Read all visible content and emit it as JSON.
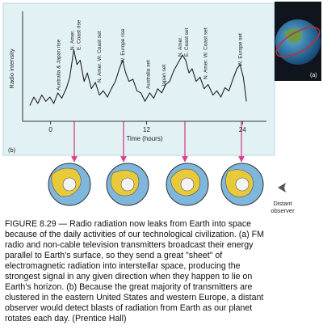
{
  "chart_data": {
    "type": "line",
    "panel_label": "(b)",
    "xlabel": "Time (hours)",
    "ylabel": "Radio intensity",
    "color": "#222222",
    "xlim": [
      -3.5,
      27
    ],
    "xticks": [
      0,
      12,
      24
    ],
    "ylim": [
      0,
      10
    ],
    "x": [
      -2.6,
      -2.1,
      -1.6,
      -1.1,
      -0.6,
      -0.1,
      0.4,
      0.9,
      1.4,
      2.0,
      2.4,
      2.9,
      3.3,
      3.7,
      4.2,
      4.6,
      5.1,
      5.6,
      6.1,
      6.6,
      7.1,
      7.6,
      8.1,
      8.6,
      9.0,
      9.4,
      9.8,
      10.3,
      10.8,
      11.3,
      11.8,
      12.4,
      12.9,
      13.4,
      13.9,
      14.4,
      14.9,
      15.4,
      15.9,
      16.5,
      16.9,
      17.3,
      17.7,
      18.2,
      18.7,
      19.2,
      19.7,
      20.3,
      20.8,
      21.3,
      21.8,
      22.3,
      22.8,
      23.3,
      23.7,
      24.1,
      24.5
    ],
    "values": [
      1.5,
      2.3,
      1.7,
      2.5,
      1.9,
      2.3,
      1.7,
      2.7,
      2.2,
      3.2,
      4.2,
      6.8,
      5.4,
      5.8,
      3.8,
      4.6,
      3.1,
      3.7,
      2.5,
      2.9,
      2.3,
      3.1,
      3.8,
      5.0,
      5.8,
      4.6,
      3.8,
      4.0,
      2.9,
      2.7,
      1.9,
      2.7,
      2.2,
      3.1,
      2.7,
      3.5,
      3.8,
      4.8,
      5.5,
      6.3,
      5.8,
      4.6,
      5.0,
      3.8,
      4.2,
      3.1,
      3.5,
      2.5,
      2.9,
      2.3,
      3.2,
      2.9,
      4.0,
      5.0,
      5.4,
      4.2,
      1.9
    ],
    "annotations": [
      {
        "lines": [
          "Australia & Japan rise"
        ],
        "x": 1.2
      },
      {
        "lines": [
          "N. Amer.",
          "E. Coast rise"
        ],
        "x": 3.3
      },
      {
        "lines": [
          "N. Amer. W. Coast set"
        ],
        "x": 6.3
      },
      {
        "lines": [
          "W. Europe rise"
        ],
        "x": 9.2
      },
      {
        "lines": [
          "Australia set"
        ],
        "x": 12.4
      },
      {
        "lines": [
          "Japan set"
        ],
        "x": 14.4
      },
      {
        "lines": [
          "N. Amer.",
          "E. Coast set"
        ],
        "x": 16.8
      },
      {
        "lines": [
          "N. Amer. W. Coast set"
        ],
        "x": 19.6
      },
      {
        "lines": [
          "W. Europe set"
        ],
        "x": 23.9
      }
    ]
  },
  "inset_label": "(a)",
  "observer_label": [
    "Distant",
    "observer"
  ],
  "caption_lines": [
    "FIGURE 8.29 — Radio radiation now leaks from Earth into space",
    "because of the daily activities of our technological civilization. (a) FM",
    "radio and non-cable television transmitters broadcast their energy",
    "parallel to Earth's surface, so they send a great \"sheet\" of",
    "electromagnetic radiation into interstellar space, producing the",
    "strongest signal in any given direction when they happen to lie on",
    "Earth's horizon. (b) Because the great majority of transmitters are",
    "clustered in the eastern United States and western Europe, a distant",
    "observer would detect blasts of radiation from Earth as our planet",
    "rotates each day. (Prentice Hall)"
  ]
}
